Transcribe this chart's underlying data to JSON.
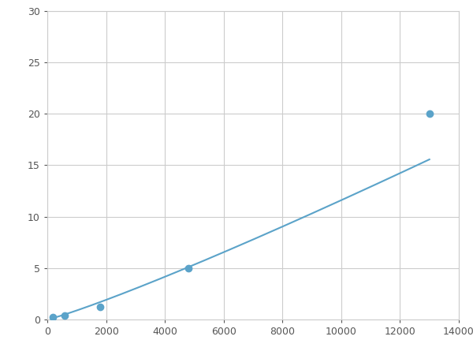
{
  "x_points": [
    200,
    600,
    1800,
    4800,
    13000
  ],
  "y_points": [
    0.2,
    0.4,
    1.2,
    5.0,
    20.0
  ],
  "line_color": "#5ba3c9",
  "marker_color": "#5ba3c9",
  "marker_size": 6,
  "xlim": [
    0,
    14000
  ],
  "ylim": [
    0,
    30
  ],
  "xticks": [
    0,
    2000,
    4000,
    6000,
    8000,
    10000,
    12000,
    14000
  ],
  "yticks": [
    0,
    5,
    10,
    15,
    20,
    25,
    30
  ],
  "xticklabels": [
    "0",
    "2000",
    "4000",
    "6000",
    "8000",
    "10000",
    "12000",
    "14000"
  ],
  "yticklabels": [
    "0",
    "5",
    "10",
    "15",
    "20",
    "25",
    "30"
  ],
  "grid_color": "#cccccc",
  "background_color": "#ffffff",
  "tick_fontsize": 9,
  "line_width": 1.5
}
